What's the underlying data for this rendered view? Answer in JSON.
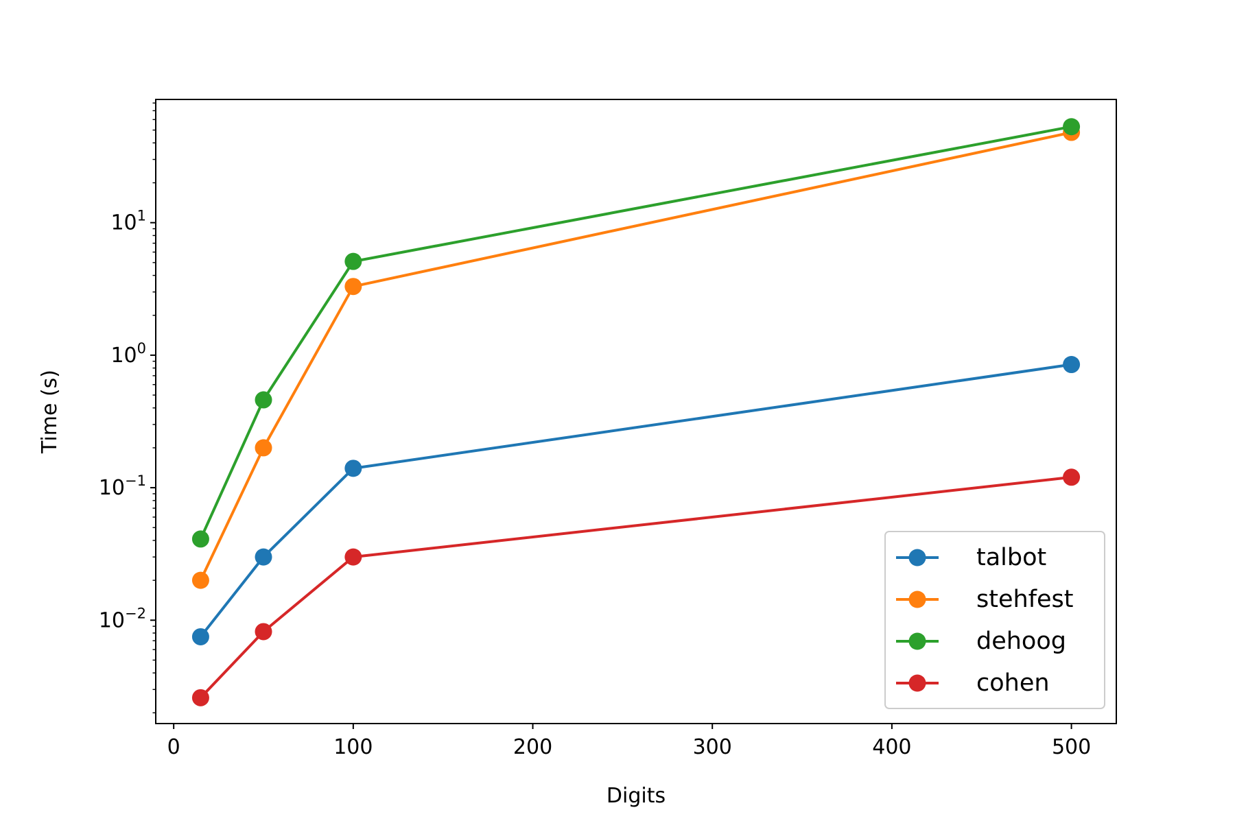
{
  "chart_data": {
    "type": "line",
    "title": "",
    "xlabel": "Digits",
    "ylabel": "Time (s)",
    "yscale": "log",
    "xlim": [
      -10,
      525
    ],
    "ylim_log10": [
      -2.78,
      1.93
    ],
    "xticks": [
      {
        "value": 0,
        "label": "0"
      },
      {
        "value": 100,
        "label": "100"
      },
      {
        "value": 200,
        "label": "200"
      },
      {
        "value": 300,
        "label": "300"
      },
      {
        "value": 400,
        "label": "400"
      },
      {
        "value": 500,
        "label": "500"
      }
    ],
    "yticks": [
      {
        "value": 0.01,
        "base": "10",
        "exp": "−2"
      },
      {
        "value": 0.1,
        "base": "10",
        "exp": "−1"
      },
      {
        "value": 1,
        "base": "10",
        "exp": "0"
      },
      {
        "value": 10,
        "base": "10",
        "exp": "1"
      }
    ],
    "x": [
      15,
      50,
      100,
      500
    ],
    "series": [
      {
        "name": "talbot",
        "color": "#1f77b4",
        "values": [
          0.0075,
          0.03,
          0.14,
          0.85
        ]
      },
      {
        "name": "stehfest",
        "color": "#ff7f0e",
        "values": [
          0.02,
          0.2,
          3.3,
          48.0
        ]
      },
      {
        "name": "dehoog",
        "color": "#2ca02c",
        "values": [
          0.041,
          0.46,
          5.1,
          53.0
        ]
      },
      {
        "name": "cohen",
        "color": "#d62728",
        "values": [
          0.0026,
          0.0082,
          0.03,
          0.12
        ]
      }
    ],
    "legend_position": "lower-right",
    "grid": false
  }
}
